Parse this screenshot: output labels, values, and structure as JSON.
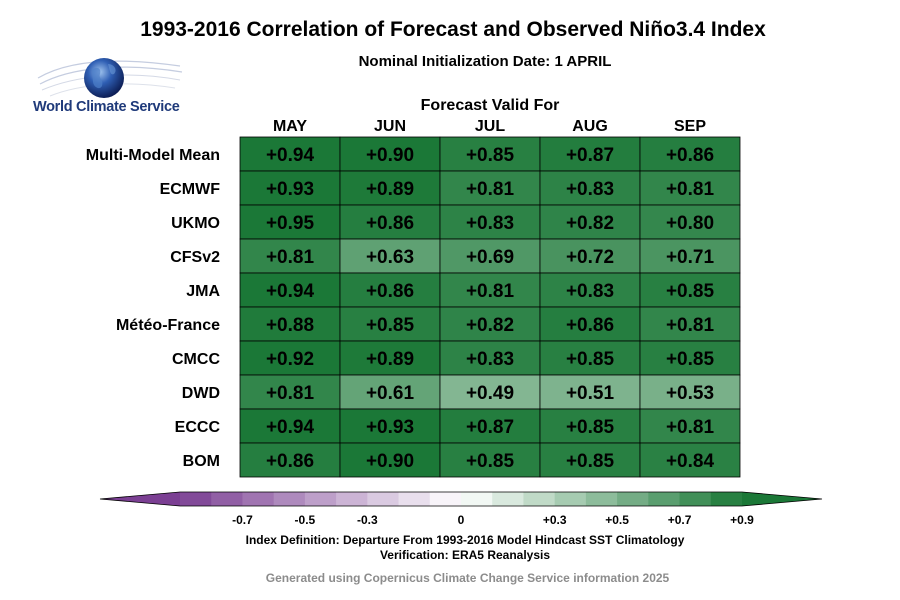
{
  "chart_data": {
    "type": "heatmap",
    "title": "1993-2016 Correlation of Forecast and Observed Niño3.4 Index",
    "subtitle": "Nominal Initialization Date: 1 APRIL",
    "column_header": "Forecast Valid For",
    "columns": [
      "MAY",
      "JUN",
      "JUL",
      "AUG",
      "SEP"
    ],
    "rows": [
      "Multi-Model Mean",
      "ECMWF",
      "UKMO",
      "CFSv2",
      "JMA",
      "Météo-France",
      "CMCC",
      "DWD",
      "ECCC",
      "BOM"
    ],
    "values": [
      [
        0.94,
        0.9,
        0.85,
        0.87,
        0.86
      ],
      [
        0.93,
        0.89,
        0.81,
        0.83,
        0.81
      ],
      [
        0.95,
        0.86,
        0.83,
        0.82,
        0.8
      ],
      [
        0.81,
        0.63,
        0.69,
        0.72,
        0.71
      ],
      [
        0.94,
        0.86,
        0.81,
        0.83,
        0.85
      ],
      [
        0.88,
        0.85,
        0.82,
        0.86,
        0.81
      ],
      [
        0.92,
        0.89,
        0.83,
        0.85,
        0.85
      ],
      [
        0.81,
        0.61,
        0.49,
        0.51,
        0.53
      ],
      [
        0.94,
        0.93,
        0.87,
        0.85,
        0.81
      ],
      [
        0.86,
        0.9,
        0.85,
        0.85,
        0.84
      ]
    ],
    "value_range": [
      -0.9,
      0.9
    ],
    "colorbar_ticks": [
      {
        "value": -0.7,
        "label": "-0.7"
      },
      {
        "value": -0.5,
        "label": "-0.5"
      },
      {
        "value": -0.3,
        "label": "-0.3"
      },
      {
        "value": 0,
        "label": "0"
      },
      {
        "value": 0.3,
        "label": "+0.3"
      },
      {
        "value": 0.5,
        "label": "+0.5"
      },
      {
        "value": 0.7,
        "label": "+0.7"
      },
      {
        "value": 0.9,
        "label": "+0.9"
      }
    ],
    "colors": {
      "negative": "#7b3f93",
      "neutral": "#ffffff",
      "positive": "#1b7837"
    }
  },
  "logo_text": "World Climate Service",
  "notes": {
    "definition": "Index Definition: Departure From 1993-2016 Model Hindcast SST Climatology",
    "verification": "Verification: ERA5 Reanalysis"
  },
  "credit": "Generated using Copernicus Climate Change Service information 2025"
}
